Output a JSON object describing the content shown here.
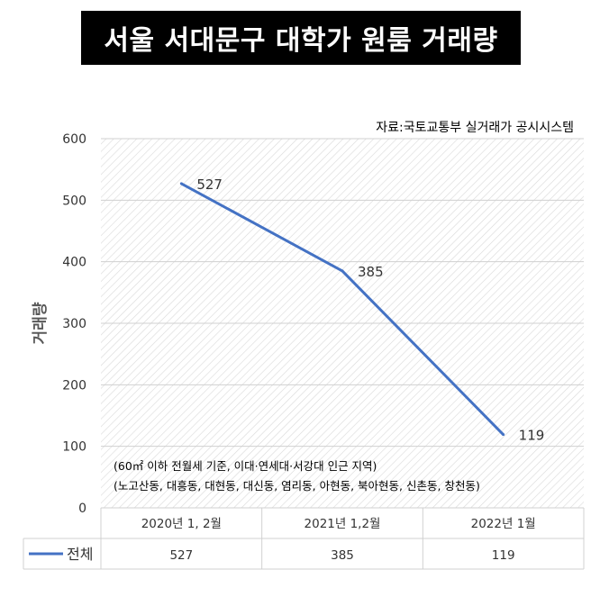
{
  "title": "서울 서대문구 대학가 원룸 거래량",
  "source": "자료:국토교통부 실거래가 공시시스템",
  "notes": [
    "(60㎡ 이하 전월세 기준, 이대·연세대·서강대 인근 지역)",
    "(노고산동, 대흥동, 대현동, 대신동, 염리동, 아현동, 북아현동, 신촌동, 창천동)"
  ],
  "colors": {
    "series": "#4472c4",
    "title_bg": "#000000",
    "title_fg": "#ffffff"
  },
  "chart_data": {
    "type": "line",
    "title": "서울 서대문구 대학가 원룸 거래량",
    "xlabel": "",
    "ylabel": "거래량",
    "categories": [
      "2020년 1, 2월",
      "2021년 1,2월",
      "2022년 1월"
    ],
    "series": [
      {
        "name": "전체",
        "values": [
          527,
          385,
          119
        ]
      }
    ],
    "ylim": [
      0,
      600
    ],
    "yticks": [
      0,
      100,
      200,
      300,
      400,
      500,
      600
    ],
    "grid": true,
    "data_table": true,
    "legend": "in-table-left"
  }
}
